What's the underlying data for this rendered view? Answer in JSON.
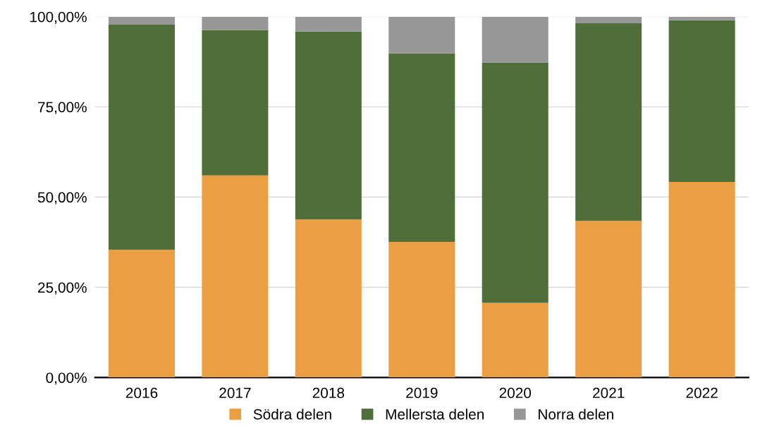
{
  "chart_data": {
    "type": "bar",
    "stacked": true,
    "categories": [
      "2016",
      "2017",
      "2018",
      "2019",
      "2020",
      "2021",
      "2022"
    ],
    "series": [
      {
        "name": "Södra delen",
        "color": "#eb9e42",
        "values": [
          35.4,
          56.0,
          43.8,
          37.6,
          20.7,
          43.4,
          54.2
        ]
      },
      {
        "name": "Mellersta delen",
        "color": "#4f6e3a",
        "values": [
          62.4,
          40.3,
          52.1,
          52.2,
          66.6,
          54.8,
          44.8
        ]
      },
      {
        "name": "Norra delen",
        "color": "#979797",
        "values": [
          2.2,
          3.7,
          4.1,
          10.2,
          12.7,
          1.8,
          1.0
        ]
      }
    ],
    "ylim": [
      0,
      100
    ],
    "yticks": [
      {
        "value": 0,
        "label": "0,00%"
      },
      {
        "value": 25,
        "label": "25,00%"
      },
      {
        "value": 50,
        "label": "50,00%"
      },
      {
        "value": 75,
        "label": "75,00%"
      },
      {
        "value": 100,
        "label": "100,00%"
      }
    ],
    "grid": "y",
    "legend": "bottom"
  }
}
